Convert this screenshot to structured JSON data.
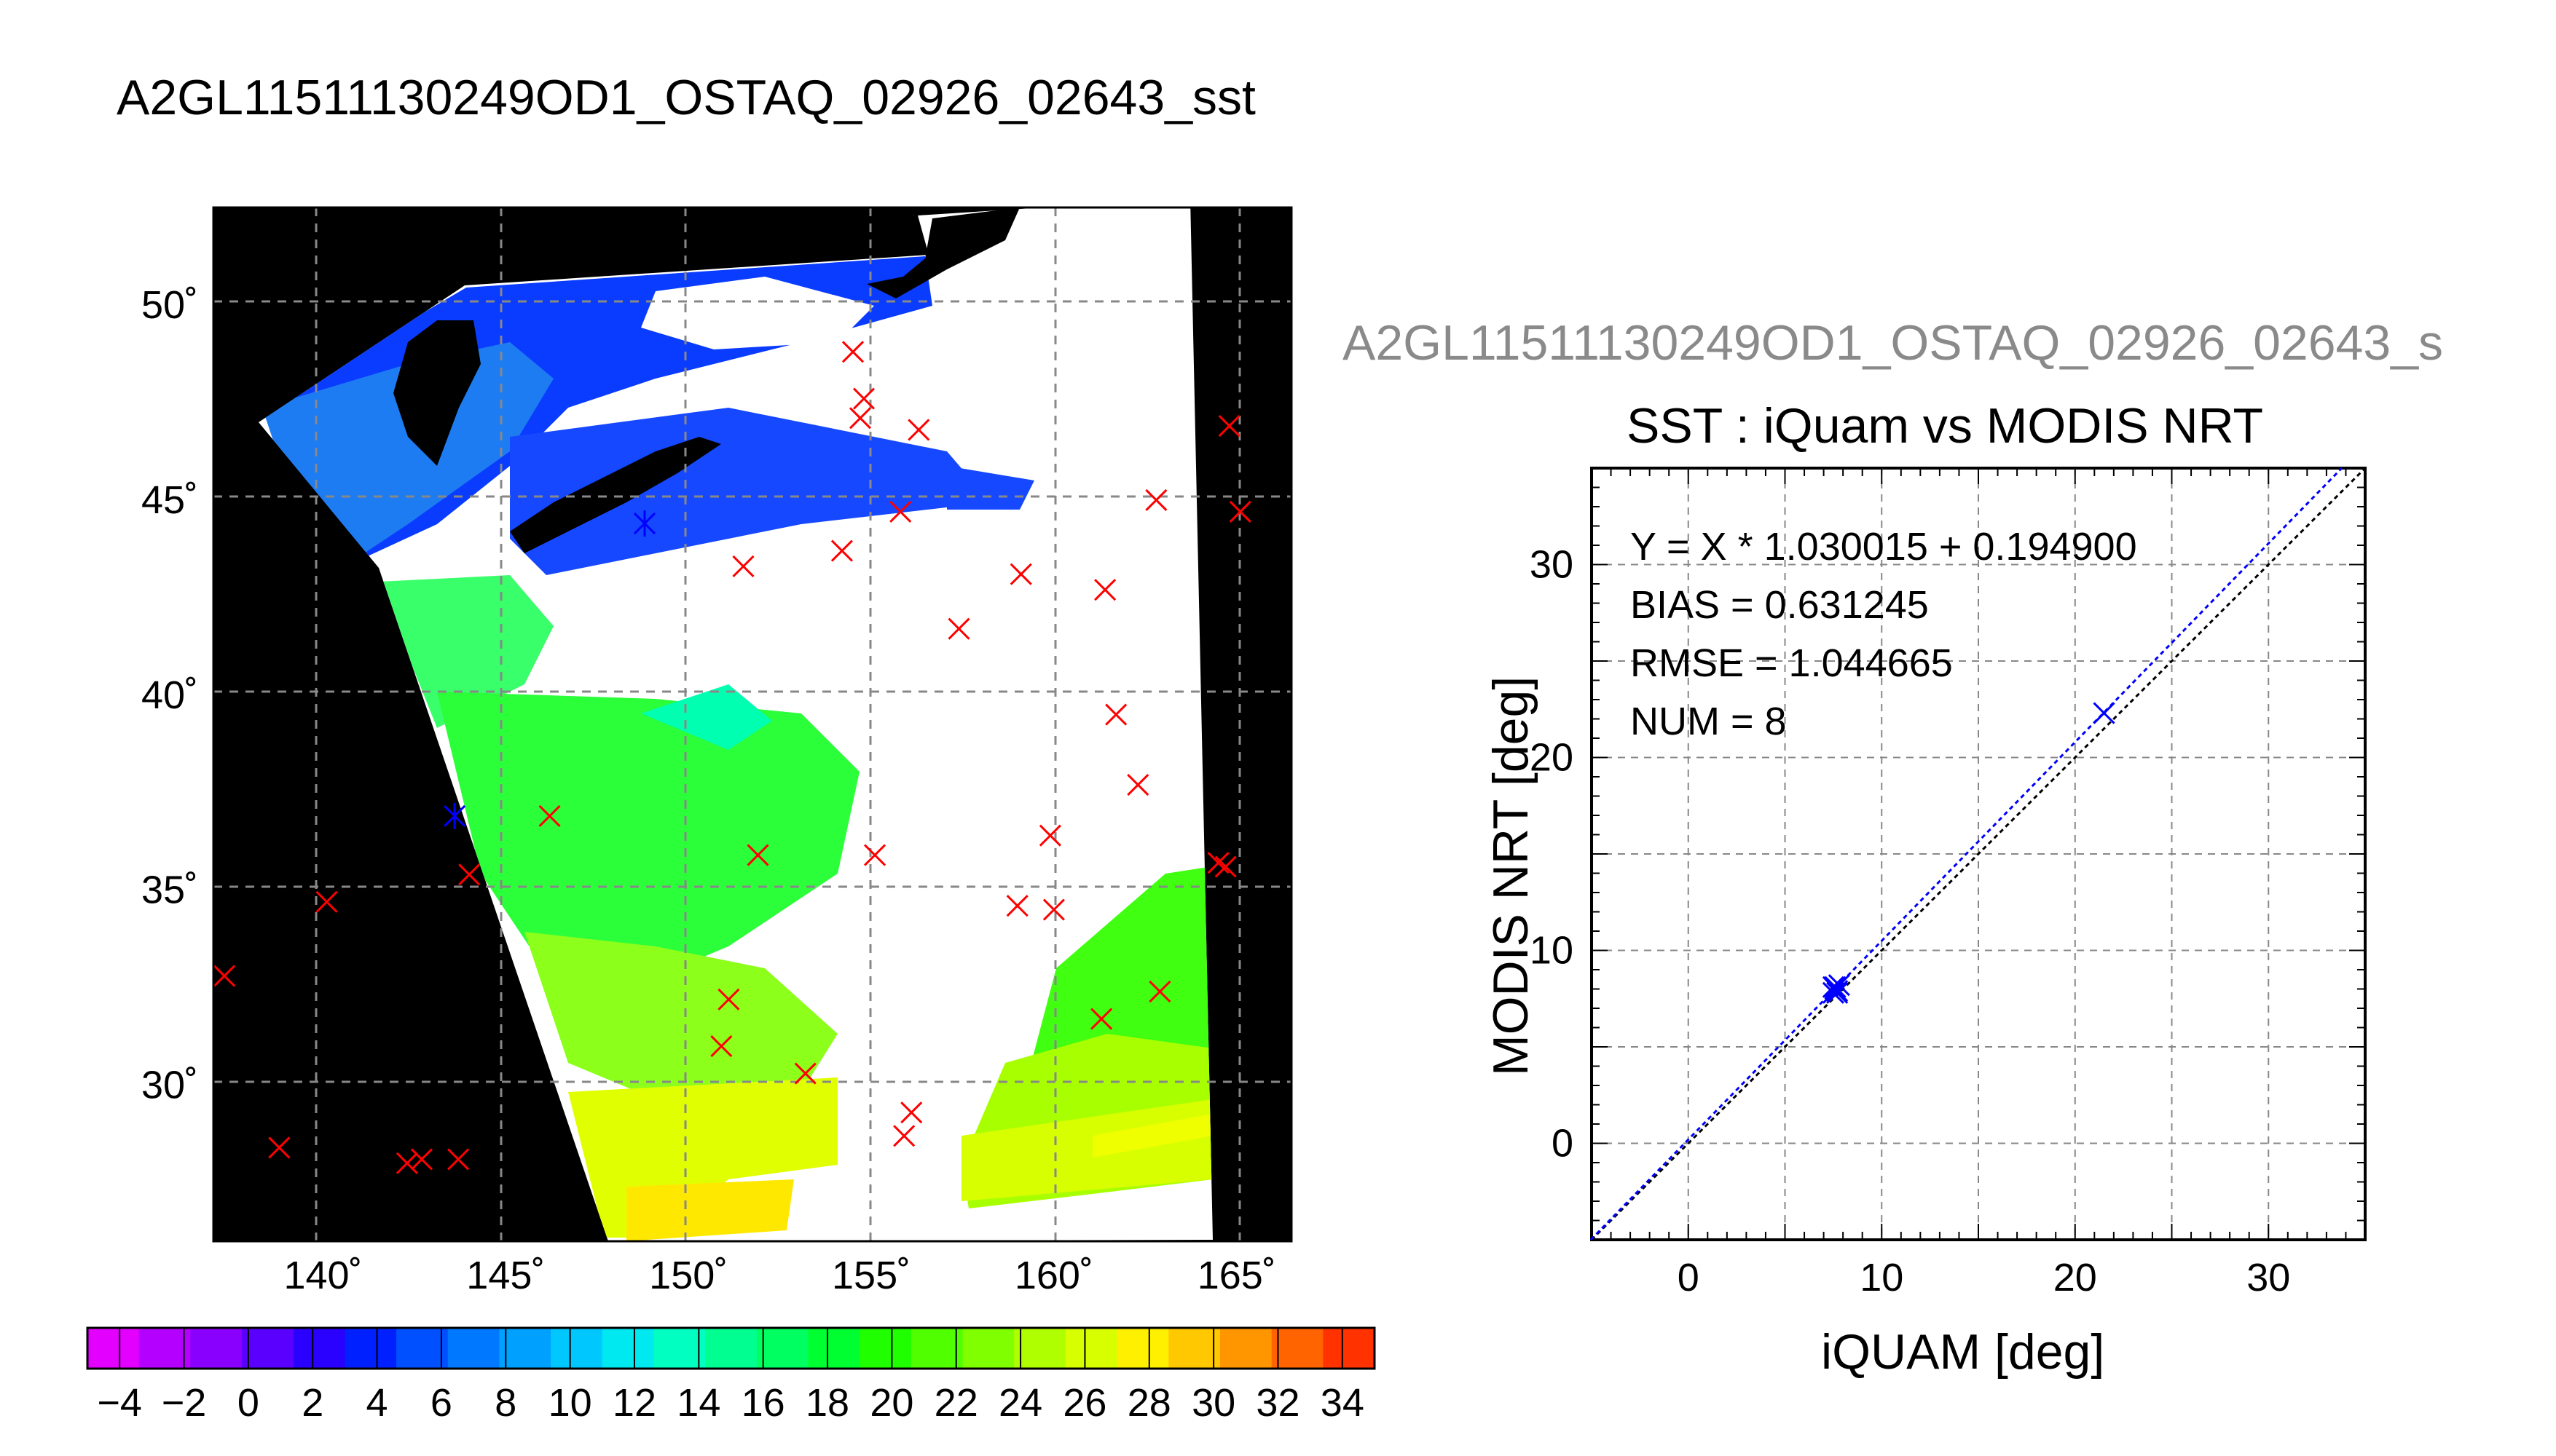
{
  "title": "A2GL11511130249OD1_OSTAQ_02926_02643_sst",
  "chart_data": [
    {
      "type": "map",
      "title": "A2GL11511130249OD1_OSTAQ_02926_02643_sst",
      "xlim": [
        137,
        166.5
      ],
      "ylim": [
        26,
        52.5
      ],
      "x_ticks": [
        140,
        145,
        150,
        155,
        160,
        165
      ],
      "x_tick_labels": [
        "140˚",
        "145˚",
        "150˚",
        "155˚",
        "160˚",
        "165˚"
      ],
      "y_ticks": [
        30,
        35,
        40,
        45,
        50
      ],
      "y_tick_labels": [
        "30˚",
        "35˚",
        "40˚",
        "45˚",
        "50˚"
      ],
      "grid": true,
      "colorbar": {
        "min": -5,
        "max": 35,
        "step": 2,
        "tick_labels": [
          "−4",
          "−2",
          "0",
          "2",
          "4",
          "6",
          "8",
          "10",
          "12",
          "14",
          "16",
          "18",
          "20",
          "22",
          "24",
          "26",
          "28",
          "30",
          "32",
          "34"
        ],
        "colors": [
          "#e400ff",
          "#b400ff",
          "#8a00ff",
          "#5a00ff",
          "#2a00ff",
          "#0020ff",
          "#0050ff",
          "#0078ff",
          "#00a0ff",
          "#00c8ff",
          "#00e8f0",
          "#00ffc0",
          "#00ff90",
          "#00ff60",
          "#00ff30",
          "#20ff00",
          "#50ff00",
          "#80ff00",
          "#b0ff00",
          "#d8ff00",
          "#fff000",
          "#ffc800",
          "#ff9600",
          "#ff6400",
          "#ff3200"
        ]
      },
      "matchups_red": [
        {
          "lon": 137.3,
          "lat": 32.8
        },
        {
          "lon": 138.8,
          "lat": 28.4
        },
        {
          "lon": 140.1,
          "lat": 34.7
        },
        {
          "lon": 142.3,
          "lat": 28.0
        },
        {
          "lon": 142.7,
          "lat": 28.1
        },
        {
          "lon": 143.7,
          "lat": 28.1
        },
        {
          "lon": 144.0,
          "lat": 35.4
        },
        {
          "lon": 146.2,
          "lat": 36.9
        },
        {
          "lon": 150.9,
          "lat": 31.0
        },
        {
          "lon": 151.1,
          "lat": 32.2
        },
        {
          "lon": 151.5,
          "lat": 43.3
        },
        {
          "lon": 151.9,
          "lat": 35.9
        },
        {
          "lon": 153.2,
          "lat": 30.3
        },
        {
          "lon": 154.2,
          "lat": 43.7
        },
        {
          "lon": 154.5,
          "lat": 48.8
        },
        {
          "lon": 154.7,
          "lat": 47.1
        },
        {
          "lon": 154.8,
          "lat": 47.6
        },
        {
          "lon": 155.1,
          "lat": 35.9
        },
        {
          "lon": 155.8,
          "lat": 44.7
        },
        {
          "lon": 155.9,
          "lat": 28.7
        },
        {
          "lon": 156.1,
          "lat": 29.3
        },
        {
          "lon": 156.3,
          "lat": 46.8
        },
        {
          "lon": 157.4,
          "lat": 41.7
        },
        {
          "lon": 159.0,
          "lat": 34.6
        },
        {
          "lon": 159.1,
          "lat": 43.1
        },
        {
          "lon": 159.9,
          "lat": 36.4
        },
        {
          "lon": 160.0,
          "lat": 34.5
        },
        {
          "lon": 161.3,
          "lat": 31.7
        },
        {
          "lon": 161.4,
          "lat": 42.7
        },
        {
          "lon": 161.7,
          "lat": 39.5
        },
        {
          "lon": 162.3,
          "lat": 37.7
        },
        {
          "lon": 162.8,
          "lat": 45.0
        },
        {
          "lon": 162.9,
          "lat": 32.4
        },
        {
          "lon": 164.5,
          "lat": 35.7
        },
        {
          "lon": 164.7,
          "lat": 35.6
        },
        {
          "lon": 164.8,
          "lat": 46.9
        },
        {
          "lon": 165.1,
          "lat": 44.7
        }
      ],
      "matchups_blue": [
        {
          "lon": 143.6,
          "lat": 36.9
        },
        {
          "lon": 148.8,
          "lat": 44.4
        }
      ]
    },
    {
      "type": "scatter",
      "subtitle": "A2GL11511130249OD1_OSTAQ_02926_02643_s",
      "title": "SST : iQuam vs MODIS NRT",
      "xlabel": "iQUAM [deg]",
      "ylabel": "MODIS NRT [deg]",
      "xlim": [
        -5,
        35
      ],
      "ylim": [
        -5,
        35
      ],
      "x_ticks": [
        0,
        10,
        20,
        30
      ],
      "y_ticks": [
        0,
        10,
        20,
        30
      ],
      "grid": true,
      "stats": [
        "Y = X * 1.030015 + 0.194900",
        "BIAS = 0.631245",
        "RMSE = 1.044665",
        "NUM = 8"
      ],
      "fit": {
        "slope": 1.030015,
        "intercept": 0.1949
      },
      "points": [
        {
          "x": 7.5,
          "y": 7.8
        },
        {
          "x": 7.6,
          "y": 8.1
        },
        {
          "x": 7.7,
          "y": 7.9
        },
        {
          "x": 7.6,
          "y": 8.0
        },
        {
          "x": 7.8,
          "y": 8.2
        },
        {
          "x": 7.5,
          "y": 8.1
        },
        {
          "x": 7.7,
          "y": 7.8
        },
        {
          "x": 21.5,
          "y": 22.3
        }
      ],
      "colors": {
        "fit": "#0000ff",
        "identity": "#000000",
        "points": "#0000ff"
      }
    }
  ]
}
